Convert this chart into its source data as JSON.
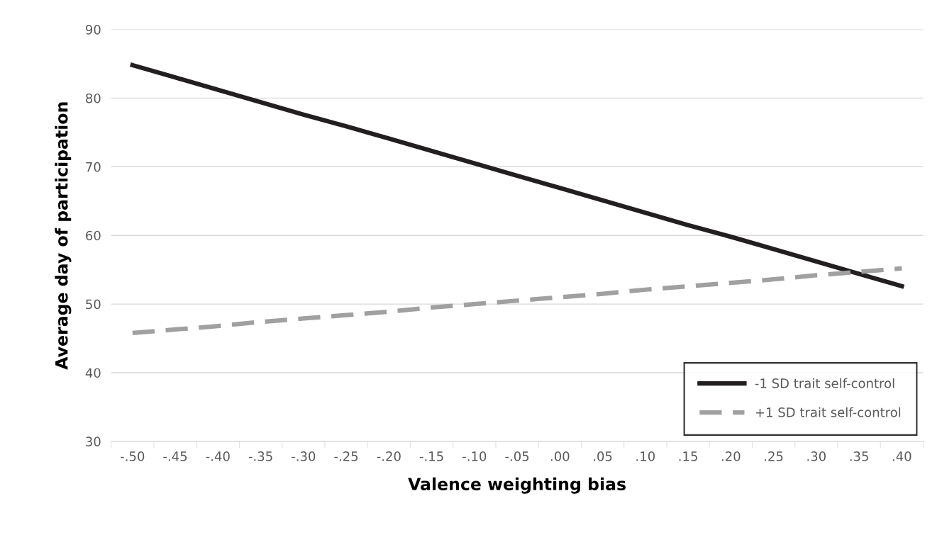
{
  "chart_data": {
    "type": "line",
    "xlabel": "Valence weighting bias",
    "ylabel": "Average day of participation",
    "categories": [
      "-.50",
      "-.45",
      "-.40",
      "-.35",
      "-.30",
      "-.25",
      "-.20",
      "-.15",
      "-.10",
      "-.05",
      ".00",
      ".05",
      ".10",
      ".15",
      ".20",
      ".25",
      ".30",
      ".35",
      ".40"
    ],
    "ylim": [
      30,
      90
    ],
    "yticks": [
      30,
      40,
      50,
      60,
      70,
      80,
      90
    ],
    "grid": "y",
    "legend": "lower right",
    "series": [
      {
        "name": "-1 SD trait self-control",
        "color": "#231f20",
        "values": [
          84.8,
          83.0,
          81.2,
          79.4,
          77.6,
          75.9,
          74.1,
          72.3,
          70.5,
          68.7,
          66.9,
          65.1,
          63.3,
          61.5,
          59.8,
          58.0,
          56.2,
          54.4,
          52.6
        ],
        "line_style": "solid"
      },
      {
        "name": "+1 SD trait self-control",
        "color": "#a0a0a0",
        "values": [
          45.8,
          46.3,
          46.8,
          47.4,
          47.9,
          48.4,
          48.9,
          49.5,
          50.0,
          50.5,
          51.0,
          51.5,
          52.1,
          52.6,
          53.1,
          53.6,
          54.2,
          54.7,
          55.2
        ],
        "line_style": "dashed"
      }
    ]
  }
}
